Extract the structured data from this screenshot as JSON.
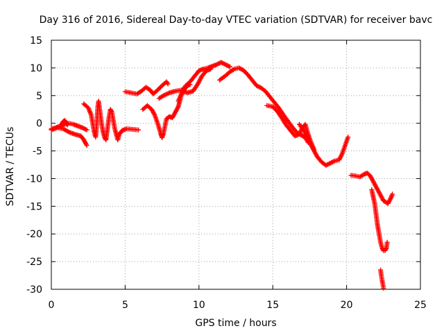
{
  "chart_data": {
    "type": "scatter",
    "title": "Day 316 of 2016, Sidereal Day-to-day VTEC variation (SDTVAR) for receiver bavc",
    "xlabel": "GPS time / hours",
    "ylabel": "SDTVAR / TECUs",
    "xlim": [
      0,
      25
    ],
    "ylim": [
      -30,
      15
    ],
    "xticks": [
      0,
      5,
      10,
      15,
      20,
      25
    ],
    "xtick_labels": [
      "0",
      "5",
      "10",
      "15",
      "20",
      "25"
    ],
    "yticks": [
      15,
      10,
      5,
      0,
      -5,
      -10,
      -15,
      -20,
      -25,
      -30
    ],
    "ytick_labels": [
      "15",
      "10",
      "5",
      "0",
      "-5",
      "-10",
      "-15",
      "-20",
      "-25",
      "-30"
    ],
    "grid": true,
    "marker": "plus",
    "color": "#ff0000",
    "series": [
      {
        "name": "s1",
        "points": [
          [
            0.0,
            -1.0
          ],
          [
            0.3,
            -0.8
          ],
          [
            0.6,
            -0.5
          ],
          [
            0.9,
            -0.2
          ],
          [
            1.2,
            0.0
          ],
          [
            1.5,
            -0.2
          ],
          [
            1.8,
            -0.5
          ],
          [
            2.1,
            -0.8
          ],
          [
            2.4,
            -1.2
          ]
        ]
      },
      {
        "name": "s2",
        "points": [
          [
            0.0,
            -1.2
          ],
          [
            0.4,
            -0.8
          ],
          [
            0.8,
            -1.0
          ],
          [
            1.2,
            -1.6
          ],
          [
            1.6,
            -2.0
          ],
          [
            2.0,
            -2.3
          ],
          [
            2.2,
            -3.0
          ],
          [
            2.4,
            -4.0
          ]
        ]
      },
      {
        "name": "s3",
        "points": [
          [
            0.7,
            -0.2
          ],
          [
            0.8,
            0.3
          ],
          [
            0.9,
            0.5
          ],
          [
            1.0,
            0.2
          ],
          [
            1.1,
            -0.3
          ]
        ]
      },
      {
        "name": "s4",
        "points": [
          [
            2.2,
            3.5
          ],
          [
            2.5,
            2.8
          ],
          [
            2.7,
            1.5
          ],
          [
            2.8,
            0.0
          ],
          [
            2.9,
            -1.5
          ],
          [
            3.0,
            -2.5
          ],
          [
            3.05,
            -1.0
          ],
          [
            3.1,
            1.0
          ],
          [
            3.15,
            3.0
          ],
          [
            3.2,
            4.0
          ],
          [
            3.3,
            2.0
          ],
          [
            3.4,
            0.0
          ],
          [
            3.5,
            -1.5
          ],
          [
            3.6,
            -2.5
          ],
          [
            3.7,
            -3.0
          ],
          [
            3.8,
            -1.0
          ],
          [
            3.9,
            1.0
          ],
          [
            4.0,
            2.5
          ],
          [
            4.1,
            2.0
          ],
          [
            4.2,
            0.5
          ],
          [
            4.3,
            -1.0
          ],
          [
            4.4,
            -2.0
          ],
          [
            4.5,
            -3.0
          ],
          [
            4.6,
            -2.0
          ],
          [
            4.8,
            -1.3
          ],
          [
            5.1,
            -1.0
          ],
          [
            5.5,
            -1.1
          ],
          [
            5.9,
            -1.2
          ]
        ]
      },
      {
        "name": "s5",
        "points": [
          [
            5.0,
            5.7
          ],
          [
            5.4,
            5.5
          ],
          [
            5.8,
            5.3
          ],
          [
            6.1,
            5.8
          ],
          [
            6.4,
            6.5
          ],
          [
            6.7,
            6.0
          ],
          [
            6.9,
            5.3
          ],
          [
            7.2,
            6.0
          ],
          [
            7.5,
            6.8
          ],
          [
            7.8,
            7.5
          ],
          [
            7.9,
            7.1
          ]
        ]
      },
      {
        "name": "s6",
        "points": [
          [
            6.2,
            2.5
          ],
          [
            6.5,
            3.2
          ],
          [
            6.8,
            2.5
          ],
          [
            7.0,
            1.5
          ],
          [
            7.2,
            0.0
          ],
          [
            7.4,
            -1.8
          ],
          [
            7.5,
            -2.6
          ],
          [
            7.6,
            -1.8
          ],
          [
            7.8,
            0.8
          ],
          [
            8.0,
            1.2
          ],
          [
            8.2,
            1.0
          ],
          [
            8.4,
            2.0
          ],
          [
            8.6,
            3.0
          ],
          [
            8.8,
            5.0
          ],
          [
            9.0,
            6.0
          ],
          [
            9.2,
            6.8
          ],
          [
            9.4,
            7.0
          ]
        ]
      },
      {
        "name": "s7",
        "points": [
          [
            7.3,
            4.5
          ],
          [
            7.6,
            5.0
          ],
          [
            8.0,
            5.5
          ],
          [
            8.4,
            5.8
          ],
          [
            8.8,
            6.0
          ],
          [
            9.2,
            5.5
          ],
          [
            9.6,
            5.8
          ],
          [
            9.9,
            7.0
          ],
          [
            10.2,
            8.5
          ],
          [
            10.5,
            9.5
          ],
          [
            10.8,
            9.8
          ]
        ]
      },
      {
        "name": "s8",
        "points": [
          [
            8.6,
            4.0
          ],
          [
            8.9,
            6.0
          ],
          [
            9.1,
            6.8
          ],
          [
            9.4,
            7.5
          ],
          [
            9.7,
            8.5
          ],
          [
            10.0,
            9.5
          ],
          [
            10.3,
            9.8
          ],
          [
            10.6,
            10.0
          ],
          [
            10.9,
            10.3
          ],
          [
            11.2,
            10.6
          ],
          [
            11.5,
            11.0
          ],
          [
            11.8,
            10.6
          ],
          [
            12.1,
            10.2
          ]
        ]
      },
      {
        "name": "s9",
        "points": [
          [
            11.4,
            7.8
          ],
          [
            11.8,
            8.6
          ],
          [
            12.1,
            9.3
          ],
          [
            12.4,
            9.8
          ],
          [
            12.7,
            10.0
          ],
          [
            13.0,
            9.6
          ],
          [
            13.3,
            8.8
          ],
          [
            13.6,
            7.8
          ],
          [
            13.9,
            6.8
          ],
          [
            14.2,
            6.4
          ],
          [
            14.5,
            5.8
          ],
          [
            14.8,
            4.8
          ],
          [
            15.1,
            3.8
          ],
          [
            15.4,
            2.8
          ],
          [
            15.7,
            1.6
          ],
          [
            16.0,
            0.5
          ],
          [
            16.3,
            -0.6
          ],
          [
            16.6,
            -1.6
          ],
          [
            16.9,
            -2.1
          ],
          [
            17.2,
            -2.6
          ],
          [
            17.4,
            -3.5
          ]
        ]
      },
      {
        "name": "s10",
        "points": [
          [
            14.6,
            3.2
          ],
          [
            15.0,
            3.0
          ],
          [
            15.3,
            2.2
          ],
          [
            15.6,
            1.0
          ],
          [
            15.9,
            -0.3
          ],
          [
            16.2,
            -1.3
          ],
          [
            16.5,
            -2.3
          ],
          [
            16.8,
            -2.0
          ],
          [
            17.0,
            -0.8
          ],
          [
            17.2,
            -0.2
          ],
          [
            17.4,
            -2.0
          ],
          [
            17.6,
            -3.5
          ],
          [
            17.8,
            -4.8
          ]
        ]
      },
      {
        "name": "s11",
        "points": [
          [
            16.8,
            -0.2
          ],
          [
            17.1,
            -1.3
          ],
          [
            17.4,
            -3.0
          ],
          [
            17.7,
            -4.5
          ],
          [
            18.0,
            -6.0
          ],
          [
            18.3,
            -7.0
          ],
          [
            18.6,
            -7.6
          ],
          [
            18.9,
            -7.2
          ],
          [
            19.2,
            -6.8
          ],
          [
            19.5,
            -6.6
          ],
          [
            19.7,
            -5.5
          ],
          [
            19.9,
            -4.0
          ],
          [
            20.1,
            -2.5
          ]
        ]
      },
      {
        "name": "s12",
        "points": [
          [
            20.3,
            -9.4
          ],
          [
            20.6,
            -9.5
          ],
          [
            20.9,
            -9.7
          ],
          [
            21.2,
            -9.2
          ],
          [
            21.4,
            -9.0
          ],
          [
            21.6,
            -9.5
          ],
          [
            21.9,
            -11.0
          ],
          [
            22.2,
            -12.5
          ],
          [
            22.5,
            -14.0
          ],
          [
            22.8,
            -14.5
          ],
          [
            23.0,
            -13.5
          ],
          [
            23.1,
            -12.8
          ]
        ]
      },
      {
        "name": "s13",
        "points": [
          [
            21.7,
            -12.0
          ],
          [
            21.9,
            -14.5
          ],
          [
            22.0,
            -16.5
          ],
          [
            22.1,
            -18.5
          ],
          [
            22.2,
            -20.0
          ],
          [
            22.3,
            -21.5
          ],
          [
            22.4,
            -22.5
          ],
          [
            22.5,
            -23.0
          ],
          [
            22.6,
            -23.0
          ],
          [
            22.7,
            -22.5
          ],
          [
            22.75,
            -21.5
          ]
        ]
      },
      {
        "name": "s14",
        "points": [
          [
            22.3,
            -26.5
          ],
          [
            22.35,
            -27.5
          ],
          [
            22.4,
            -28.3
          ],
          [
            22.45,
            -29.0
          ],
          [
            22.5,
            -29.8
          ]
        ]
      }
    ]
  }
}
